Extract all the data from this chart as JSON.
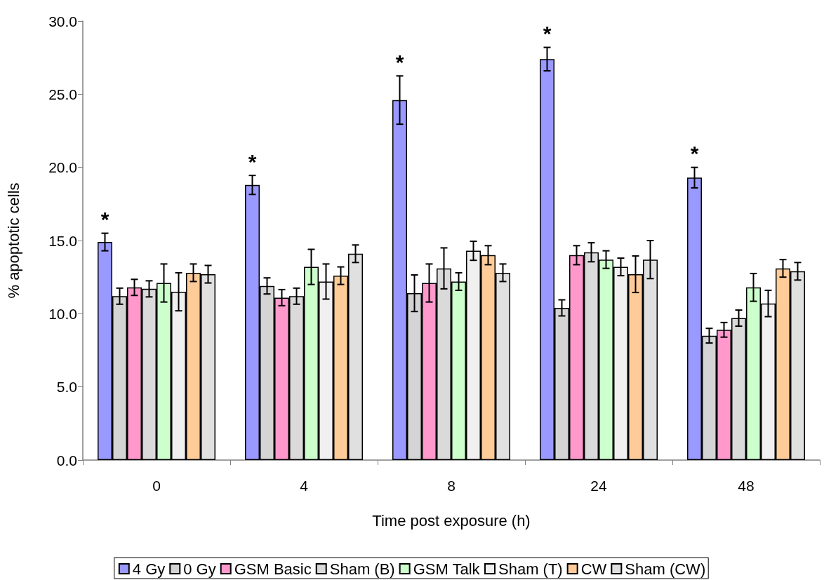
{
  "chart_data": {
    "type": "bar",
    "xlabel": "Time post exposure (h)",
    "ylabel": "% apoptotic cells",
    "categories": [
      "0",
      "4",
      "8",
      "24",
      "48"
    ],
    "series": [
      {
        "name": "4 Gy",
        "color": "#9999ff",
        "values": [
          14.9,
          18.8,
          24.6,
          27.4,
          19.3
        ],
        "errors": [
          0.6,
          0.65,
          1.65,
          0.8,
          0.7
        ]
      },
      {
        "name": "0 Gy",
        "color": "#d4d4d4",
        "values": [
          11.2,
          11.9,
          11.4,
          10.4,
          8.5
        ],
        "errors": [
          0.55,
          0.55,
          1.25,
          0.55,
          0.5
        ]
      },
      {
        "name": "GSM Basic",
        "color": "#ff99cc",
        "values": [
          11.8,
          11.1,
          12.1,
          14.0,
          8.9
        ],
        "errors": [
          0.55,
          0.55,
          1.3,
          0.65,
          0.5
        ]
      },
      {
        "name": "Sham (B)",
        "color": "#dadada",
        "values": [
          11.7,
          11.2,
          13.1,
          14.2,
          9.7
        ],
        "errors": [
          0.55,
          0.55,
          1.4,
          0.65,
          0.55
        ]
      },
      {
        "name": "GSM Talk",
        "color": "#ccffcc",
        "values": [
          12.1,
          13.2,
          12.2,
          13.7,
          11.8
        ],
        "errors": [
          1.3,
          1.2,
          0.6,
          0.6,
          0.95
        ]
      },
      {
        "name": "Sham (T)",
        "color": "#f0f0f0",
        "values": [
          11.5,
          12.2,
          14.3,
          13.2,
          10.7
        ],
        "errors": [
          1.3,
          1.2,
          0.65,
          0.6,
          0.9
        ]
      },
      {
        "name": "CW",
        "color": "#ffcc99",
        "values": [
          12.8,
          12.6,
          14.0,
          12.7,
          13.1
        ],
        "errors": [
          0.6,
          0.6,
          0.65,
          1.25,
          0.6
        ]
      },
      {
        "name": "Sham (CW)",
        "color": "#e0e0e0",
        "values": [
          12.7,
          14.1,
          12.8,
          13.7,
          12.9
        ],
        "errors": [
          0.6,
          0.6,
          0.6,
          1.3,
          0.6
        ]
      }
    ],
    "ylim": [
      0,
      30
    ],
    "yticks": [
      {
        "value": 0,
        "label": "0.0"
      },
      {
        "value": 5,
        "label": "5.0"
      },
      {
        "value": 10,
        "label": "10.0"
      },
      {
        "value": 15,
        "label": "15.0"
      },
      {
        "value": 20,
        "label": "20.0"
      },
      {
        "value": 25,
        "label": "25.0"
      },
      {
        "value": 30,
        "label": "30.0"
      }
    ],
    "annotations": [
      "*",
      "*",
      "*",
      "*",
      "*"
    ],
    "grid": false,
    "legend": "bottom"
  }
}
